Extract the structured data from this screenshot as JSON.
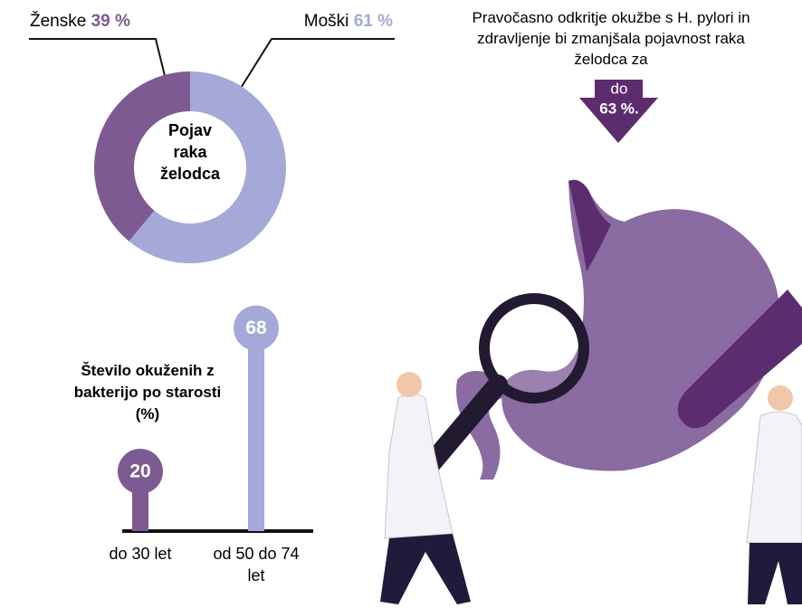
{
  "chart_data": [
    {
      "type": "donut",
      "title": "Pojav raka želodca",
      "categories": [
        "Ženske",
        "Moški"
      ],
      "values": [
        39,
        61
      ],
      "value_labels": [
        "39 %",
        "61 %"
      ],
      "colors": [
        "#7e5a93",
        "#a4a9d8"
      ]
    },
    {
      "type": "lollipop",
      "title": "Število okuženih z bakterijo po starosti  (%)",
      "categories": [
        "do 30 let",
        "od 50 do 74 let"
      ],
      "values": [
        20,
        68
      ],
      "colors": [
        "#7e5a93",
        "#a4a9d8"
      ]
    }
  ],
  "callout": {
    "text": "Pravočasno odkritje okužbe s H. pylori in zdravljenje bi zmanjšala pojavnost raka želodca za",
    "prefix": "do",
    "value": 63,
    "value_label": "63 %."
  }
}
